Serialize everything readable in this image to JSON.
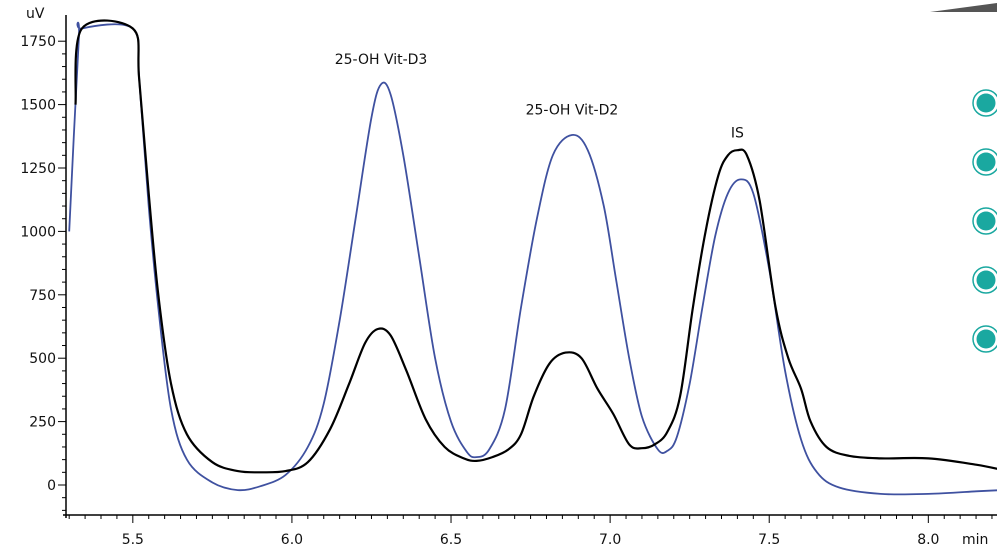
{
  "chart_data": {
    "type": "line",
    "title": "",
    "xlabel": "min",
    "ylabel": "uV",
    "xlim": [
      5.29,
      8.23
    ],
    "ylim": [
      -130,
      1790
    ],
    "x_ticks": [
      5.5,
      6.0,
      6.5,
      7.0,
      7.5,
      8.0
    ],
    "x_tick_labels": [
      "5.5",
      "6.0",
      "6.5",
      "7.0",
      "7.5",
      "8.0"
    ],
    "y_ticks": [
      0,
      250,
      500,
      750,
      1000,
      1250,
      1500,
      1750
    ],
    "y_tick_labels": [
      "0",
      "250",
      "500",
      "750",
      "1000",
      "1250",
      "1500",
      "1750"
    ],
    "grid": false,
    "legend": "none",
    "annotations": [
      {
        "text": "25-OH Vit-D3",
        "x": 6.28,
        "y": 1660
      },
      {
        "text": "25-OH Vit-D2",
        "x": 6.88,
        "y": 1460
      },
      {
        "text": "IS",
        "x": 7.4,
        "y": 1370
      }
    ],
    "series": [
      {
        "color": "#3f51a0",
        "points": [
          [
            5.3,
            1000
          ],
          [
            5.33,
            1750
          ],
          [
            5.34,
            1800
          ],
          [
            5.5,
            1800
          ],
          [
            5.52,
            1600
          ],
          [
            5.55,
            1100
          ],
          [
            5.58,
            700
          ],
          [
            5.62,
            300
          ],
          [
            5.67,
            100
          ],
          [
            5.75,
            10
          ],
          [
            5.83,
            -20
          ],
          [
            5.9,
            -5
          ],
          [
            5.98,
            40
          ],
          [
            6.05,
            150
          ],
          [
            6.1,
            320
          ],
          [
            6.15,
            650
          ],
          [
            6.2,
            1050
          ],
          [
            6.25,
            1450
          ],
          [
            6.28,
            1580
          ],
          [
            6.31,
            1540
          ],
          [
            6.35,
            1300
          ],
          [
            6.4,
            900
          ],
          [
            6.45,
            500
          ],
          [
            6.5,
            250
          ],
          [
            6.55,
            130
          ],
          [
            6.58,
            110
          ],
          [
            6.62,
            140
          ],
          [
            6.67,
            300
          ],
          [
            6.72,
            700
          ],
          [
            6.77,
            1050
          ],
          [
            6.82,
            1300
          ],
          [
            6.88,
            1380
          ],
          [
            6.93,
            1320
          ],
          [
            6.98,
            1100
          ],
          [
            7.02,
            800
          ],
          [
            7.06,
            500
          ],
          [
            7.1,
            270
          ],
          [
            7.15,
            140
          ],
          [
            7.18,
            135
          ],
          [
            7.21,
            190
          ],
          [
            7.25,
            400
          ],
          [
            7.29,
            700
          ],
          [
            7.33,
            980
          ],
          [
            7.37,
            1150
          ],
          [
            7.41,
            1205
          ],
          [
            7.45,
            1150
          ],
          [
            7.5,
            850
          ],
          [
            7.55,
            450
          ],
          [
            7.6,
            180
          ],
          [
            7.65,
            50
          ],
          [
            7.72,
            -10
          ],
          [
            7.85,
            -35
          ],
          [
            8.0,
            -35
          ],
          [
            8.15,
            -25
          ],
          [
            8.23,
            -20
          ]
        ]
      },
      {
        "color": "#000000",
        "points": [
          [
            5.32,
            1500
          ],
          [
            5.34,
            1800
          ],
          [
            5.5,
            1800
          ],
          [
            5.52,
            1600
          ],
          [
            5.55,
            1150
          ],
          [
            5.58,
            750
          ],
          [
            5.62,
            400
          ],
          [
            5.67,
            200
          ],
          [
            5.75,
            90
          ],
          [
            5.83,
            55
          ],
          [
            5.9,
            50
          ],
          [
            5.98,
            55
          ],
          [
            6.05,
            90
          ],
          [
            6.12,
            220
          ],
          [
            6.18,
            400
          ],
          [
            6.23,
            560
          ],
          [
            6.27,
            615
          ],
          [
            6.31,
            590
          ],
          [
            6.36,
            450
          ],
          [
            6.42,
            260
          ],
          [
            6.48,
            150
          ],
          [
            6.54,
            105
          ],
          [
            6.58,
            95
          ],
          [
            6.63,
            110
          ],
          [
            6.68,
            140
          ],
          [
            6.72,
            200
          ],
          [
            6.76,
            350
          ],
          [
            6.81,
            480
          ],
          [
            6.86,
            522
          ],
          [
            6.91,
            500
          ],
          [
            6.96,
            380
          ],
          [
            7.01,
            280
          ],
          [
            7.06,
            160
          ],
          [
            7.1,
            145
          ],
          [
            7.14,
            160
          ],
          [
            7.18,
            210
          ],
          [
            7.22,
            350
          ],
          [
            7.26,
            700
          ],
          [
            7.3,
            1000
          ],
          [
            7.34,
            1220
          ],
          [
            7.37,
            1300
          ],
          [
            7.4,
            1320
          ],
          [
            7.43,
            1300
          ],
          [
            7.47,
            1120
          ],
          [
            7.52,
            700
          ],
          [
            7.56,
            500
          ],
          [
            7.6,
            380
          ],
          [
            7.63,
            250
          ],
          [
            7.68,
            150
          ],
          [
            7.75,
            115
          ],
          [
            7.85,
            105
          ],
          [
            8.0,
            105
          ],
          [
            8.15,
            80
          ],
          [
            8.23,
            60
          ]
        ]
      }
    ]
  },
  "decor": {
    "teal_color": "#1aa8a0",
    "dot_count": 5
  }
}
